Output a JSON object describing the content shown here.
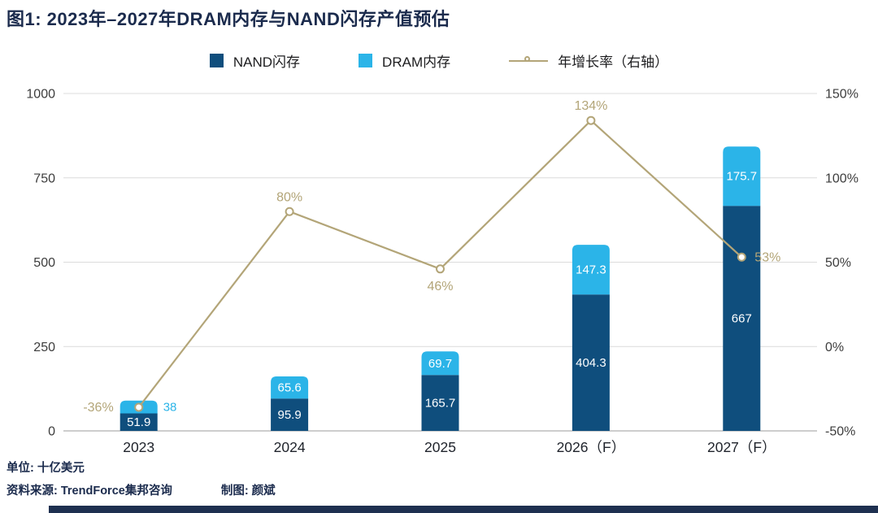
{
  "title": "图1: 2023年–2027年DRAM内存与NAND闪存产值预估",
  "legend": [
    {
      "label": "NAND闪存",
      "color": "#0f4e7d",
      "type": "square"
    },
    {
      "label": "DRAM内存",
      "color": "#2bb4e8",
      "type": "square"
    },
    {
      "label": "年增长率（右轴）",
      "color": "#b3a578",
      "type": "line"
    }
  ],
  "footer": {
    "unit": "单位: 十亿美元",
    "source": "资料来源: TrendForce集邦咨询",
    "credit": "制图: 颜斌"
  },
  "chart_data": {
    "type": "bar",
    "stacked": true,
    "title": "2023年–2027年DRAM内存与NAND闪存产值预估",
    "unit": "十亿美元",
    "categories": [
      "2023",
      "2024",
      "2025",
      "2026（F）",
      "2027（F）"
    ],
    "series": [
      {
        "name": "NAND闪存",
        "role": "bar",
        "color": "#0f4e7d",
        "values": [
          51.9,
          95.9,
          165.7,
          404.3,
          667
        ],
        "value_labels": [
          "51.9",
          "95.9",
          "165.7",
          "404.3",
          "667"
        ]
      },
      {
        "name": "DRAM内存",
        "role": "bar",
        "color": "#2bb4e8",
        "values": [
          38,
          65.6,
          69.7,
          147.3,
          175.7
        ],
        "value_labels": [
          "38",
          "65.6",
          "69.7",
          "147.3",
          "175.7"
        ],
        "label_outside": [
          true,
          false,
          false,
          false,
          false
        ]
      },
      {
        "name": "年增长率（右轴）",
        "role": "line",
        "axis": "right",
        "color": "#b3a578",
        "values": [
          -36,
          80,
          46,
          134,
          53
        ],
        "value_labels": [
          "-36%",
          "80%",
          "46%",
          "134%",
          "53%"
        ],
        "label_pos": [
          "left",
          "above",
          "below",
          "above",
          "right"
        ]
      }
    ],
    "left_axis": {
      "range": [
        0,
        1000
      ],
      "ticks": [
        0,
        250,
        500,
        750,
        1000
      ],
      "tick_labels": [
        "0",
        "250",
        "500",
        "750",
        "1000"
      ]
    },
    "right_axis": {
      "range": [
        -50,
        150
      ],
      "tick_labels": [
        "-50%",
        "0%",
        "50%",
        "100%",
        "150%"
      ]
    },
    "grid": true,
    "legend_position": "top"
  }
}
